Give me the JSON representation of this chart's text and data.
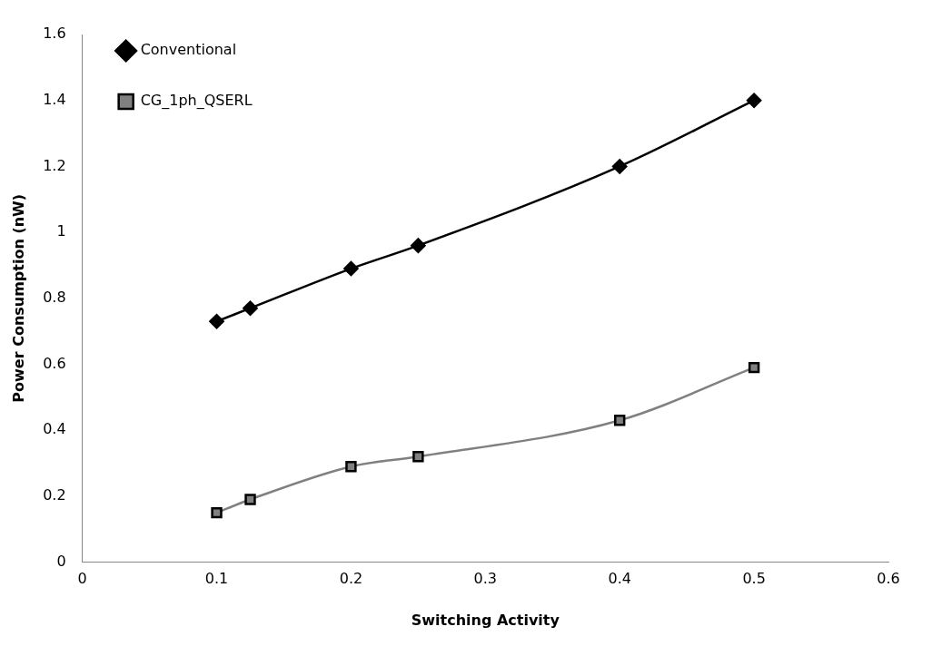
{
  "chart_data": {
    "type": "line",
    "xlabel": "Switching Activity",
    "ylabel": "Power Consumption (nW)",
    "x": [
      0.1,
      0.125,
      0.2,
      0.25,
      0.4,
      0.5
    ],
    "series": [
      {
        "name": "Conventional",
        "color": "#000000",
        "marker": "diamond",
        "values": [
          0.73,
          0.77,
          0.89,
          0.96,
          1.2,
          1.4
        ]
      },
      {
        "name": "CG_1ph_QSERL",
        "color": "#808080",
        "marker": "square",
        "values": [
          0.15,
          0.19,
          0.29,
          0.32,
          0.43,
          0.59
        ]
      }
    ],
    "xlim": [
      0,
      0.6
    ],
    "xticks": [
      0,
      0.1,
      0.2,
      0.3,
      0.4,
      0.5,
      0.6
    ],
    "ylim": [
      0,
      1.6
    ],
    "yticks": [
      0,
      0.2,
      0.4,
      0.6,
      0.8,
      1,
      1.2,
      1.4,
      1.6
    ],
    "grid": false,
    "legend": "top left",
    "line_style": "solid"
  }
}
